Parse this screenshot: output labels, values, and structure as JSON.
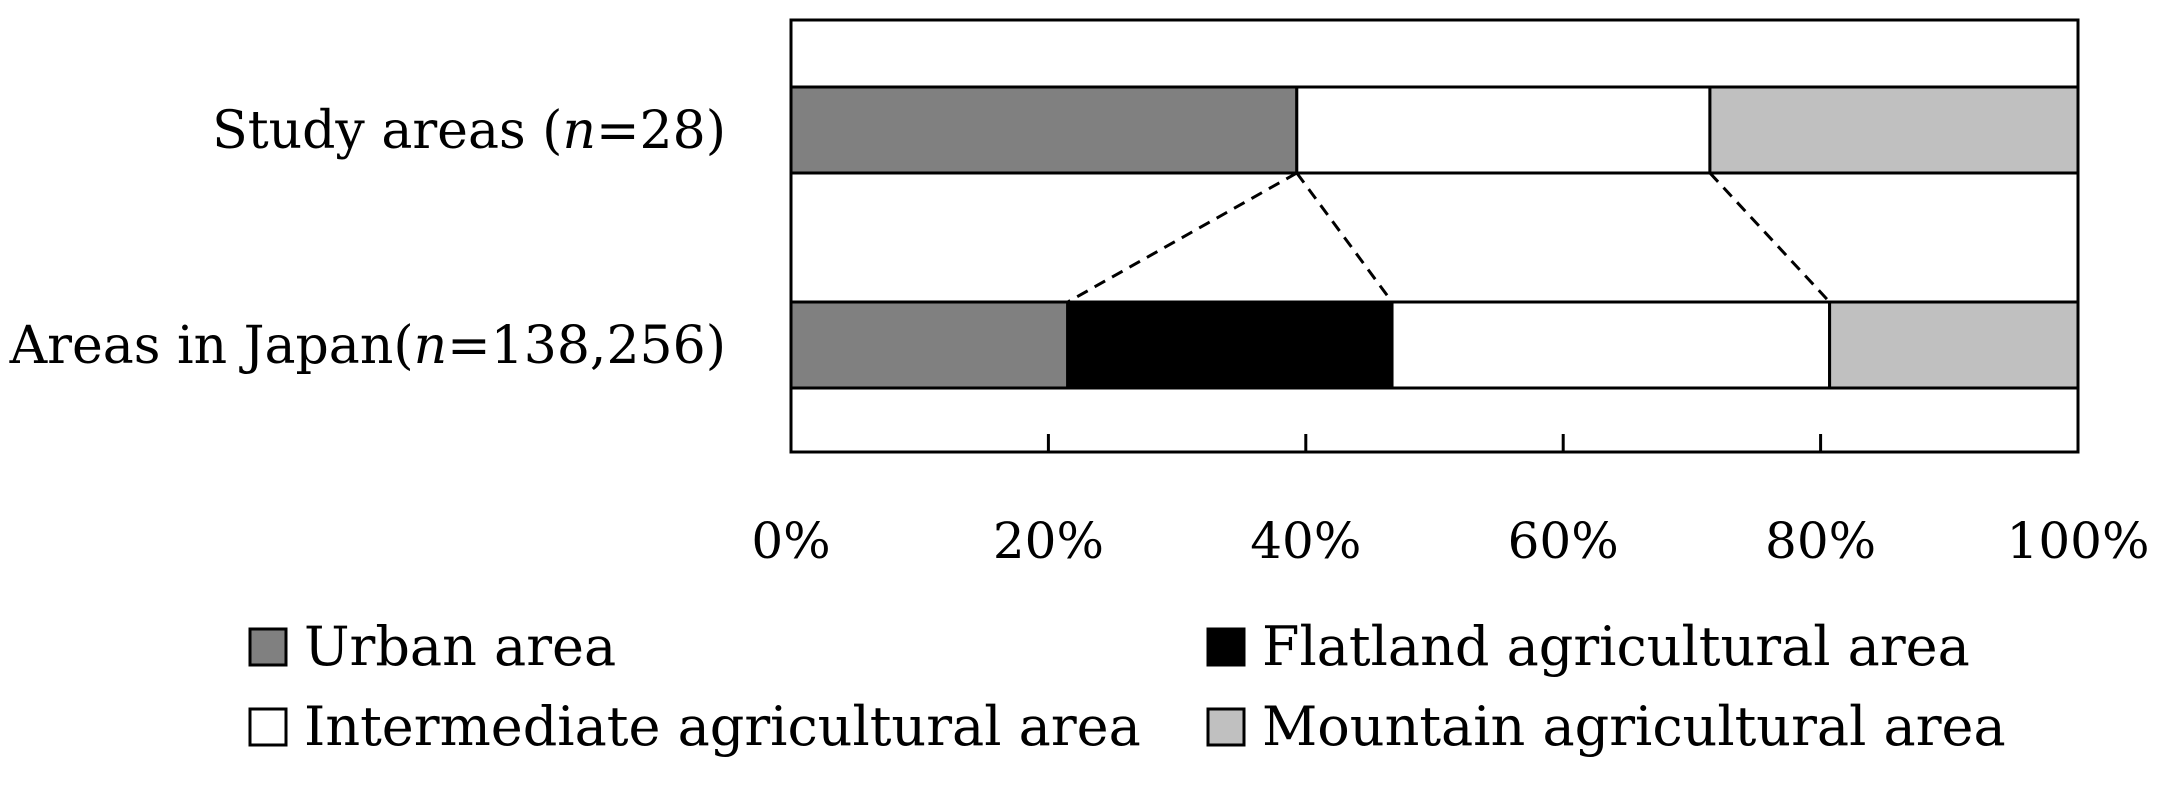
{
  "chart_data": {
    "type": "bar",
    "orientation": "horizontal",
    "stacked": true,
    "categories": [
      {
        "name": "Study areas",
        "n_prefix": " (",
        "n_italic": "n",
        "n_value": "=28)"
      },
      {
        "name": "Areas in Japan",
        "n_prefix": "(",
        "n_italic": "n",
        "n_value": "=138,256)"
      }
    ],
    "series": [
      {
        "name": "Urban area",
        "color": "#808080",
        "values": [
          39.3,
          21.5
        ]
      },
      {
        "name": "Flatland agricultural area",
        "color": "#000000",
        "values": [
          0,
          25.2
        ]
      },
      {
        "name": "Intermediate agricultural area",
        "color": "#ffffff",
        "values": [
          32.1,
          34.0
        ]
      },
      {
        "name": "Mountain agricultural area",
        "color": "#c0c0c0",
        "values": [
          28.6,
          19.3
        ]
      }
    ],
    "connectors": [
      {
        "from": 39.3,
        "to": 21.5
      },
      {
        "from": 39.3,
        "to": 46.7
      },
      {
        "from": 71.4,
        "to": 80.7
      }
    ],
    "xlim": [
      0,
      100
    ],
    "xticks": [
      "0%",
      "20%",
      "40%",
      "60%",
      "80%",
      "100%"
    ],
    "grid": false,
    "legend_position": "bottom"
  }
}
